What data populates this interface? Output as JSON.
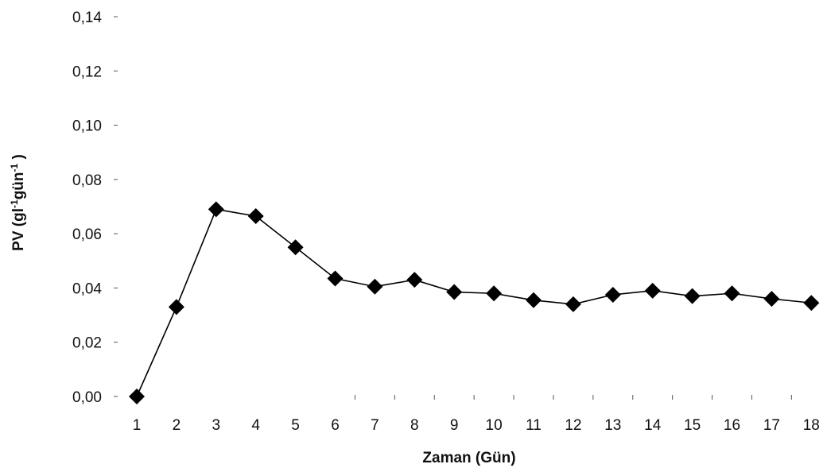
{
  "chart_data": {
    "type": "line",
    "xlabel": "Zaman (Gün)",
    "ylabel": "PV (gl-1gün-1 )",
    "ylabel_parts": {
      "prefix": "PV (gl",
      "sup1": "-1",
      "middle": "gün",
      "sup2": "-1",
      "suffix": " )"
    },
    "categories": [
      "1",
      "2",
      "3",
      "4",
      "5",
      "6",
      "7",
      "8",
      "9",
      "10",
      "11",
      "12",
      "13",
      "14",
      "15",
      "16",
      "17",
      "18"
    ],
    "y_ticks": [
      "0,00",
      "0,02",
      "0,04",
      "0,06",
      "0,08",
      "0,10",
      "0,12",
      "0,14"
    ],
    "ylim": [
      0,
      0.14
    ],
    "grid": false,
    "series": [
      {
        "marker": "diamond",
        "color": "#000000",
        "values": [
          0.0,
          0.033,
          0.069,
          0.0665,
          0.055,
          0.0435,
          0.0405,
          0.043,
          0.0385,
          0.038,
          0.0355,
          0.034,
          0.0375,
          0.039,
          0.037,
          0.038,
          0.036,
          0.0345
        ]
      }
    ]
  }
}
